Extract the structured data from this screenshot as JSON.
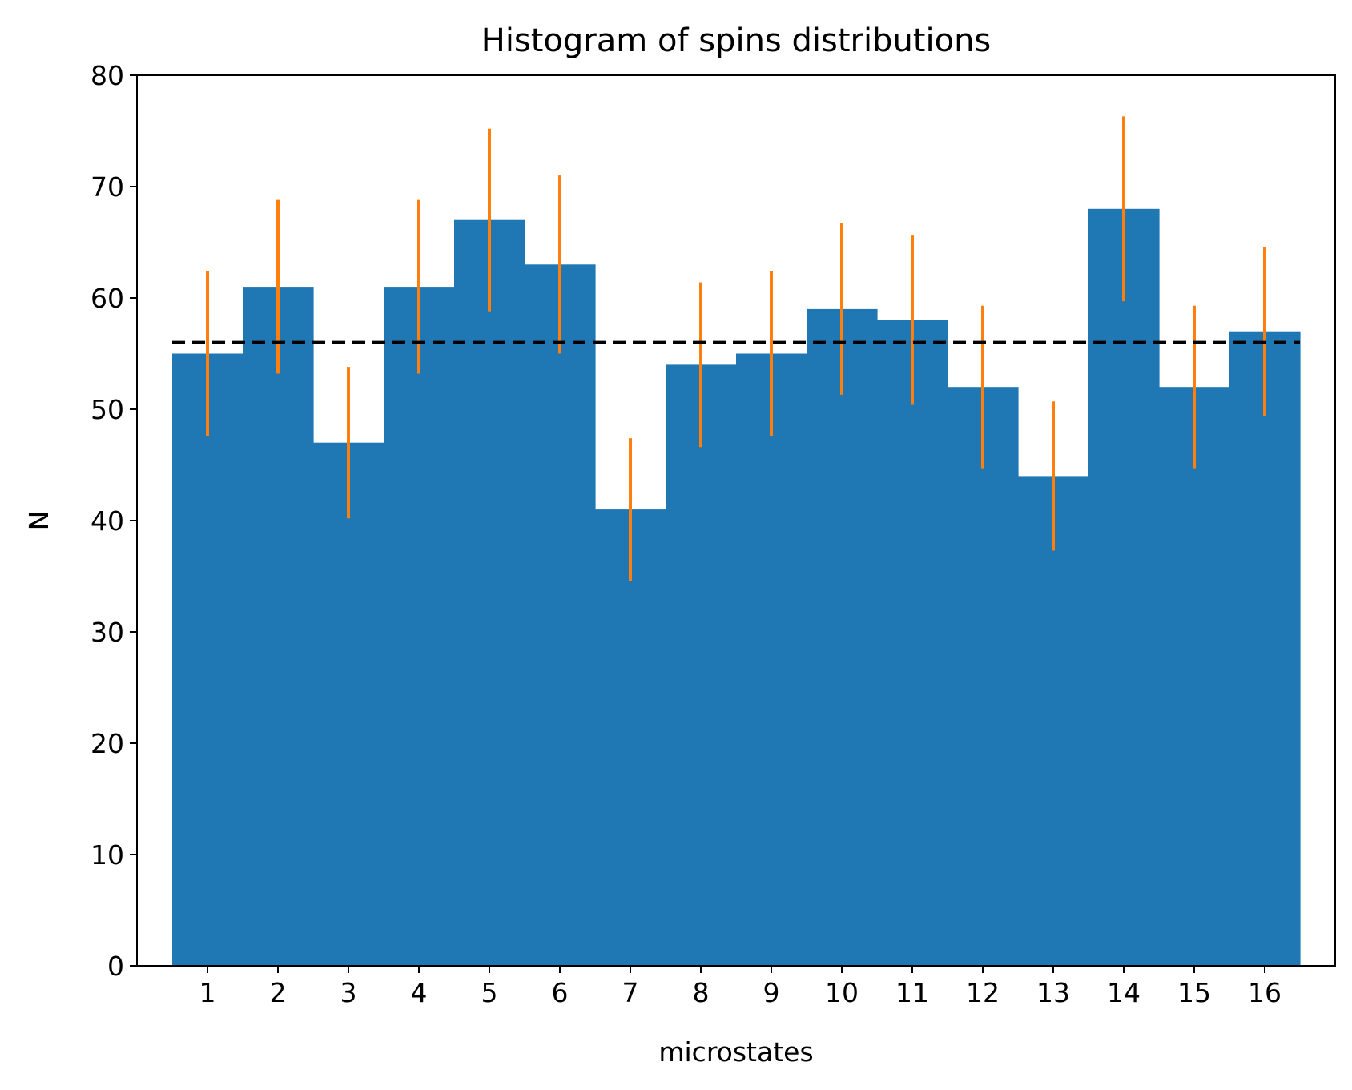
{
  "chart_data": {
    "type": "bar",
    "title": "Histogram of spins distributions",
    "xlabel": "microstates",
    "ylabel": "N",
    "categories": [
      "1",
      "2",
      "3",
      "4",
      "5",
      "6",
      "7",
      "8",
      "9",
      "10",
      "11",
      "12",
      "13",
      "14",
      "15",
      "16"
    ],
    "values": [
      55,
      61,
      47,
      61,
      67,
      63,
      41,
      54,
      55,
      59,
      58,
      52,
      44,
      68,
      52,
      57
    ],
    "error_low": [
      47.6,
      53.2,
      40.2,
      53.2,
      58.8,
      55.0,
      34.6,
      46.6,
      47.6,
      51.3,
      50.4,
      44.7,
      37.3,
      59.7,
      44.7,
      49.4
    ],
    "error_high": [
      62.4,
      68.8,
      53.8,
      68.8,
      75.2,
      71.0,
      47.4,
      61.4,
      62.4,
      66.7,
      65.6,
      59.3,
      50.7,
      76.3,
      59.3,
      64.6
    ],
    "reference_line": 56,
    "xlim": [
      0,
      17
    ],
    "ylim": [
      0,
      80
    ],
    "yticks": [
      0,
      10,
      20,
      30,
      40,
      50,
      60,
      70,
      80
    ],
    "grid": false,
    "colors": {
      "bars": "#1f77b4",
      "errorbars": "#ff7f0e",
      "reference_line": "#000000"
    }
  }
}
